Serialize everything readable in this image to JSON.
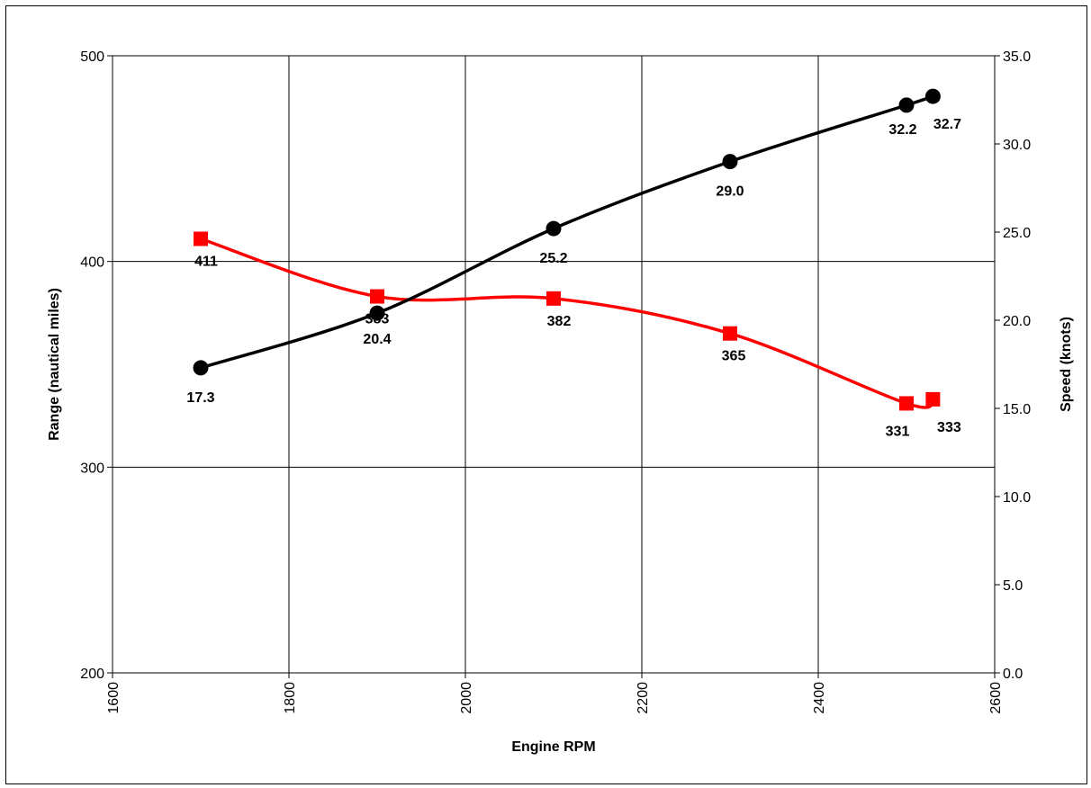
{
  "chart_data": {
    "type": "line",
    "xlabel": "Engine RPM",
    "ylabel": "Range (nautical miles)",
    "y2label": "Speed (knots)",
    "xlim": [
      1600,
      2600
    ],
    "ylim": [
      200,
      500
    ],
    "y2lim": [
      0,
      35
    ],
    "x_ticks": [
      "1600",
      "1800",
      "2000",
      "2200",
      "2400",
      "2600"
    ],
    "y_ticks": [
      "200",
      "300",
      "400",
      "500"
    ],
    "y2_ticks": [
      "0.0",
      "5.0",
      "10.0",
      "15.0",
      "20.0",
      "25.0",
      "30.0",
      "35.0"
    ],
    "grid": true,
    "series": [
      {
        "axis": "left",
        "color": "#ff0000",
        "marker": "square",
        "x": [
          1700,
          1900,
          2100,
          2300,
          2500,
          2530
        ],
        "values": [
          411,
          383,
          382,
          365,
          331,
          333
        ],
        "labels": [
          "411",
          "383",
          "382",
          "365",
          "331",
          "333"
        ]
      },
      {
        "axis": "right",
        "color": "#000000",
        "marker": "circle",
        "x": [
          1700,
          1900,
          2100,
          2300,
          2500,
          2530
        ],
        "values": [
          17.3,
          20.4,
          25.2,
          29.0,
          32.2,
          32.7
        ],
        "labels": [
          "17.3",
          "20.4",
          "25.2",
          "29.0",
          "32.2",
          "32.7"
        ]
      }
    ]
  }
}
